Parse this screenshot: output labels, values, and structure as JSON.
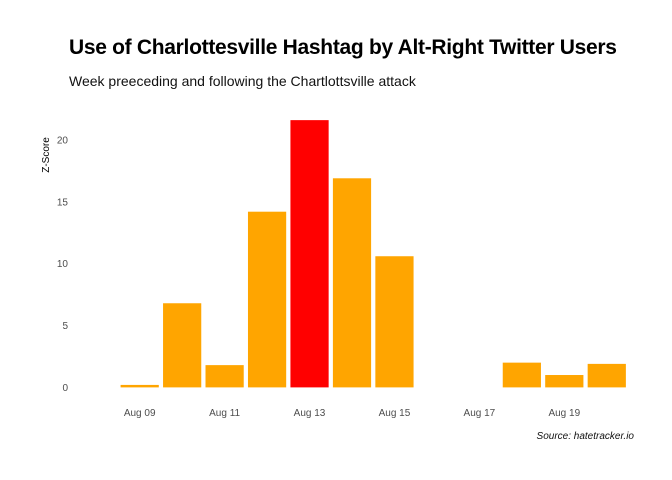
{
  "chart_data": {
    "type": "bar",
    "title": "Use of Charlottesville Hashtag by Alt-Right Twitter Users",
    "subtitle": "Week preeceding and following the Chartlottsville attack",
    "caption": "Source: hatetracker.io",
    "ylabel": "Z-Score",
    "xlabel": "",
    "ylim": [
      -1.1,
      22.5
    ],
    "grid": false,
    "y_ticks": [
      0,
      5,
      10,
      15,
      20
    ],
    "x_range": [
      "2017-08-08",
      "2017-08-20"
    ],
    "x_ticks": [
      {
        "date": "2017-08-09",
        "label": "Aug 09"
      },
      {
        "date": "2017-08-11",
        "label": "Aug 11"
      },
      {
        "date": "2017-08-13",
        "label": "Aug 13"
      },
      {
        "date": "2017-08-15",
        "label": "Aug 15"
      },
      {
        "date": "2017-08-17",
        "label": "Aug 17"
      },
      {
        "date": "2017-08-19",
        "label": "Aug 19"
      }
    ],
    "bars": [
      {
        "date": "2017-08-09",
        "value": 0.2,
        "color": "#FFA500"
      },
      {
        "date": "2017-08-10",
        "value": 6.8,
        "color": "#FFA500"
      },
      {
        "date": "2017-08-11",
        "value": 1.8,
        "color": "#FFA500"
      },
      {
        "date": "2017-08-12",
        "value": 14.2,
        "color": "#FFA500"
      },
      {
        "date": "2017-08-13",
        "value": 21.6,
        "color": "#FF0000"
      },
      {
        "date": "2017-08-14",
        "value": 16.9,
        "color": "#FFA500"
      },
      {
        "date": "2017-08-15",
        "value": 10.6,
        "color": "#FFA500"
      },
      {
        "date": "2017-08-18",
        "value": 2.0,
        "color": "#FFA500"
      },
      {
        "date": "2017-08-19",
        "value": 1.0,
        "color": "#FFA500"
      },
      {
        "date": "2017-08-20",
        "value": 1.9,
        "color": "#FFA500"
      }
    ]
  }
}
